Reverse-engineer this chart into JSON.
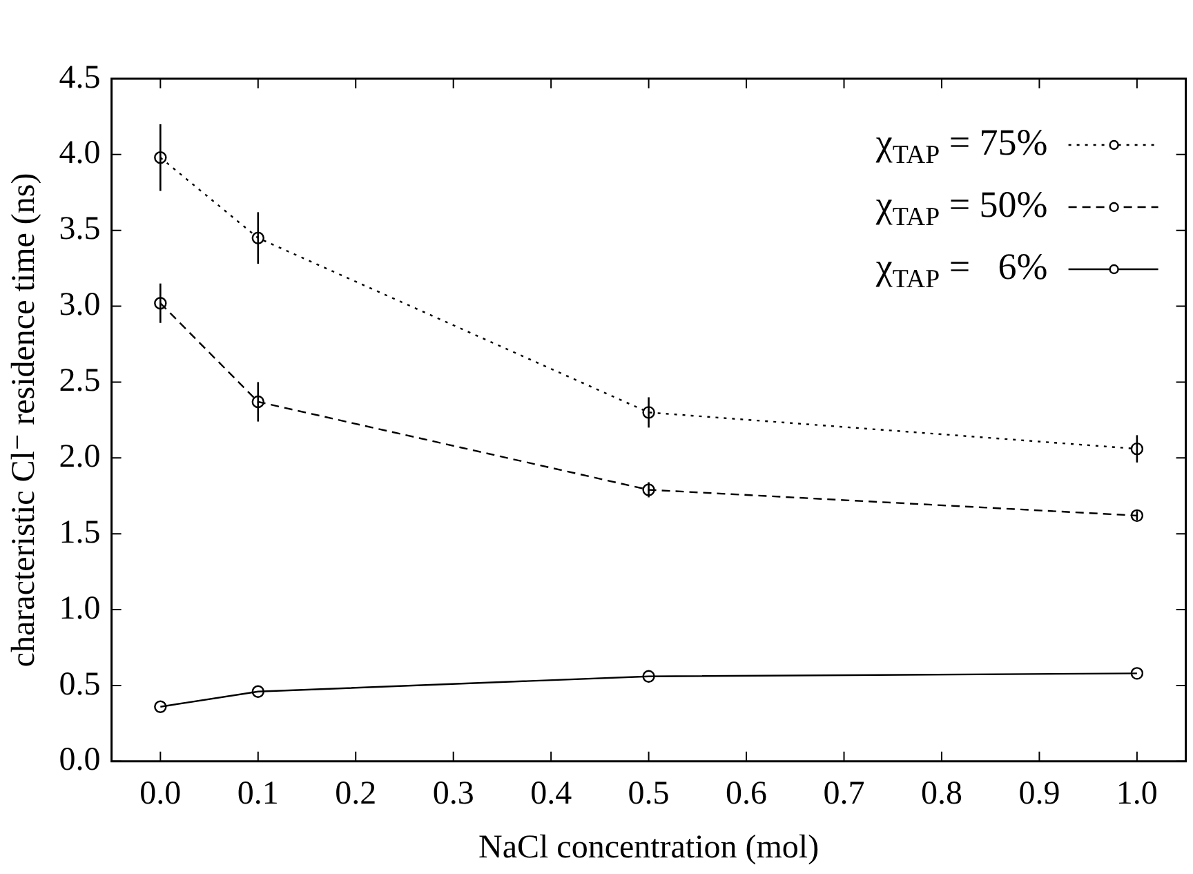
{
  "chart_data": {
    "type": "line",
    "xlabel": "NaCl concentration (mol)",
    "ylabel": "characteristic Cl⁻ residence time (ns)",
    "x": [
      0.0,
      0.1,
      0.5,
      1.0
    ],
    "series": [
      {
        "name": "χ$_{TAP}$ = 75%",
        "color": "#000000",
        "line_style": "dotted",
        "values": [
          3.98,
          3.45,
          2.3,
          2.06
        ],
        "errors": [
          0.22,
          0.17,
          0.1,
          0.09
        ]
      },
      {
        "name": "χ$_{TAP}$ = 50%",
        "color": "#000000",
        "line_style": "dashed",
        "values": [
          3.02,
          2.37,
          1.79,
          1.62
        ],
        "errors": [
          0.13,
          0.13,
          0.05,
          0.03
        ]
      },
      {
        "name": "χ$_{TAP}$ =   6%",
        "color": "#000000",
        "line_style": "solid",
        "values": [
          0.36,
          0.46,
          0.56,
          0.58
        ]
      }
    ],
    "marker": "circle",
    "legend": "top right",
    "grid": false,
    "xlim": [
      -0.05,
      1.05
    ],
    "xticks": [
      {
        "value": 0,
        "label": "0.0"
      },
      0.1,
      0.2,
      0.3,
      0.4,
      0.5,
      0.6,
      0.7,
      0.8,
      0.9,
      {
        "value": 1,
        "label": "1.0"
      }
    ],
    "ylim": [
      0,
      4.5
    ],
    "yticks": [
      {
        "value": 0,
        "label": "0.0"
      },
      0.5,
      {
        "value": 1,
        "label": "1.0"
      },
      1.5,
      {
        "value": 2,
        "label": "2.0"
      },
      2.5,
      {
        "value": 3,
        "label": "3.0"
      },
      3.5,
      {
        "value": 4,
        "label": "4.0"
      },
      4.5
    ]
  }
}
